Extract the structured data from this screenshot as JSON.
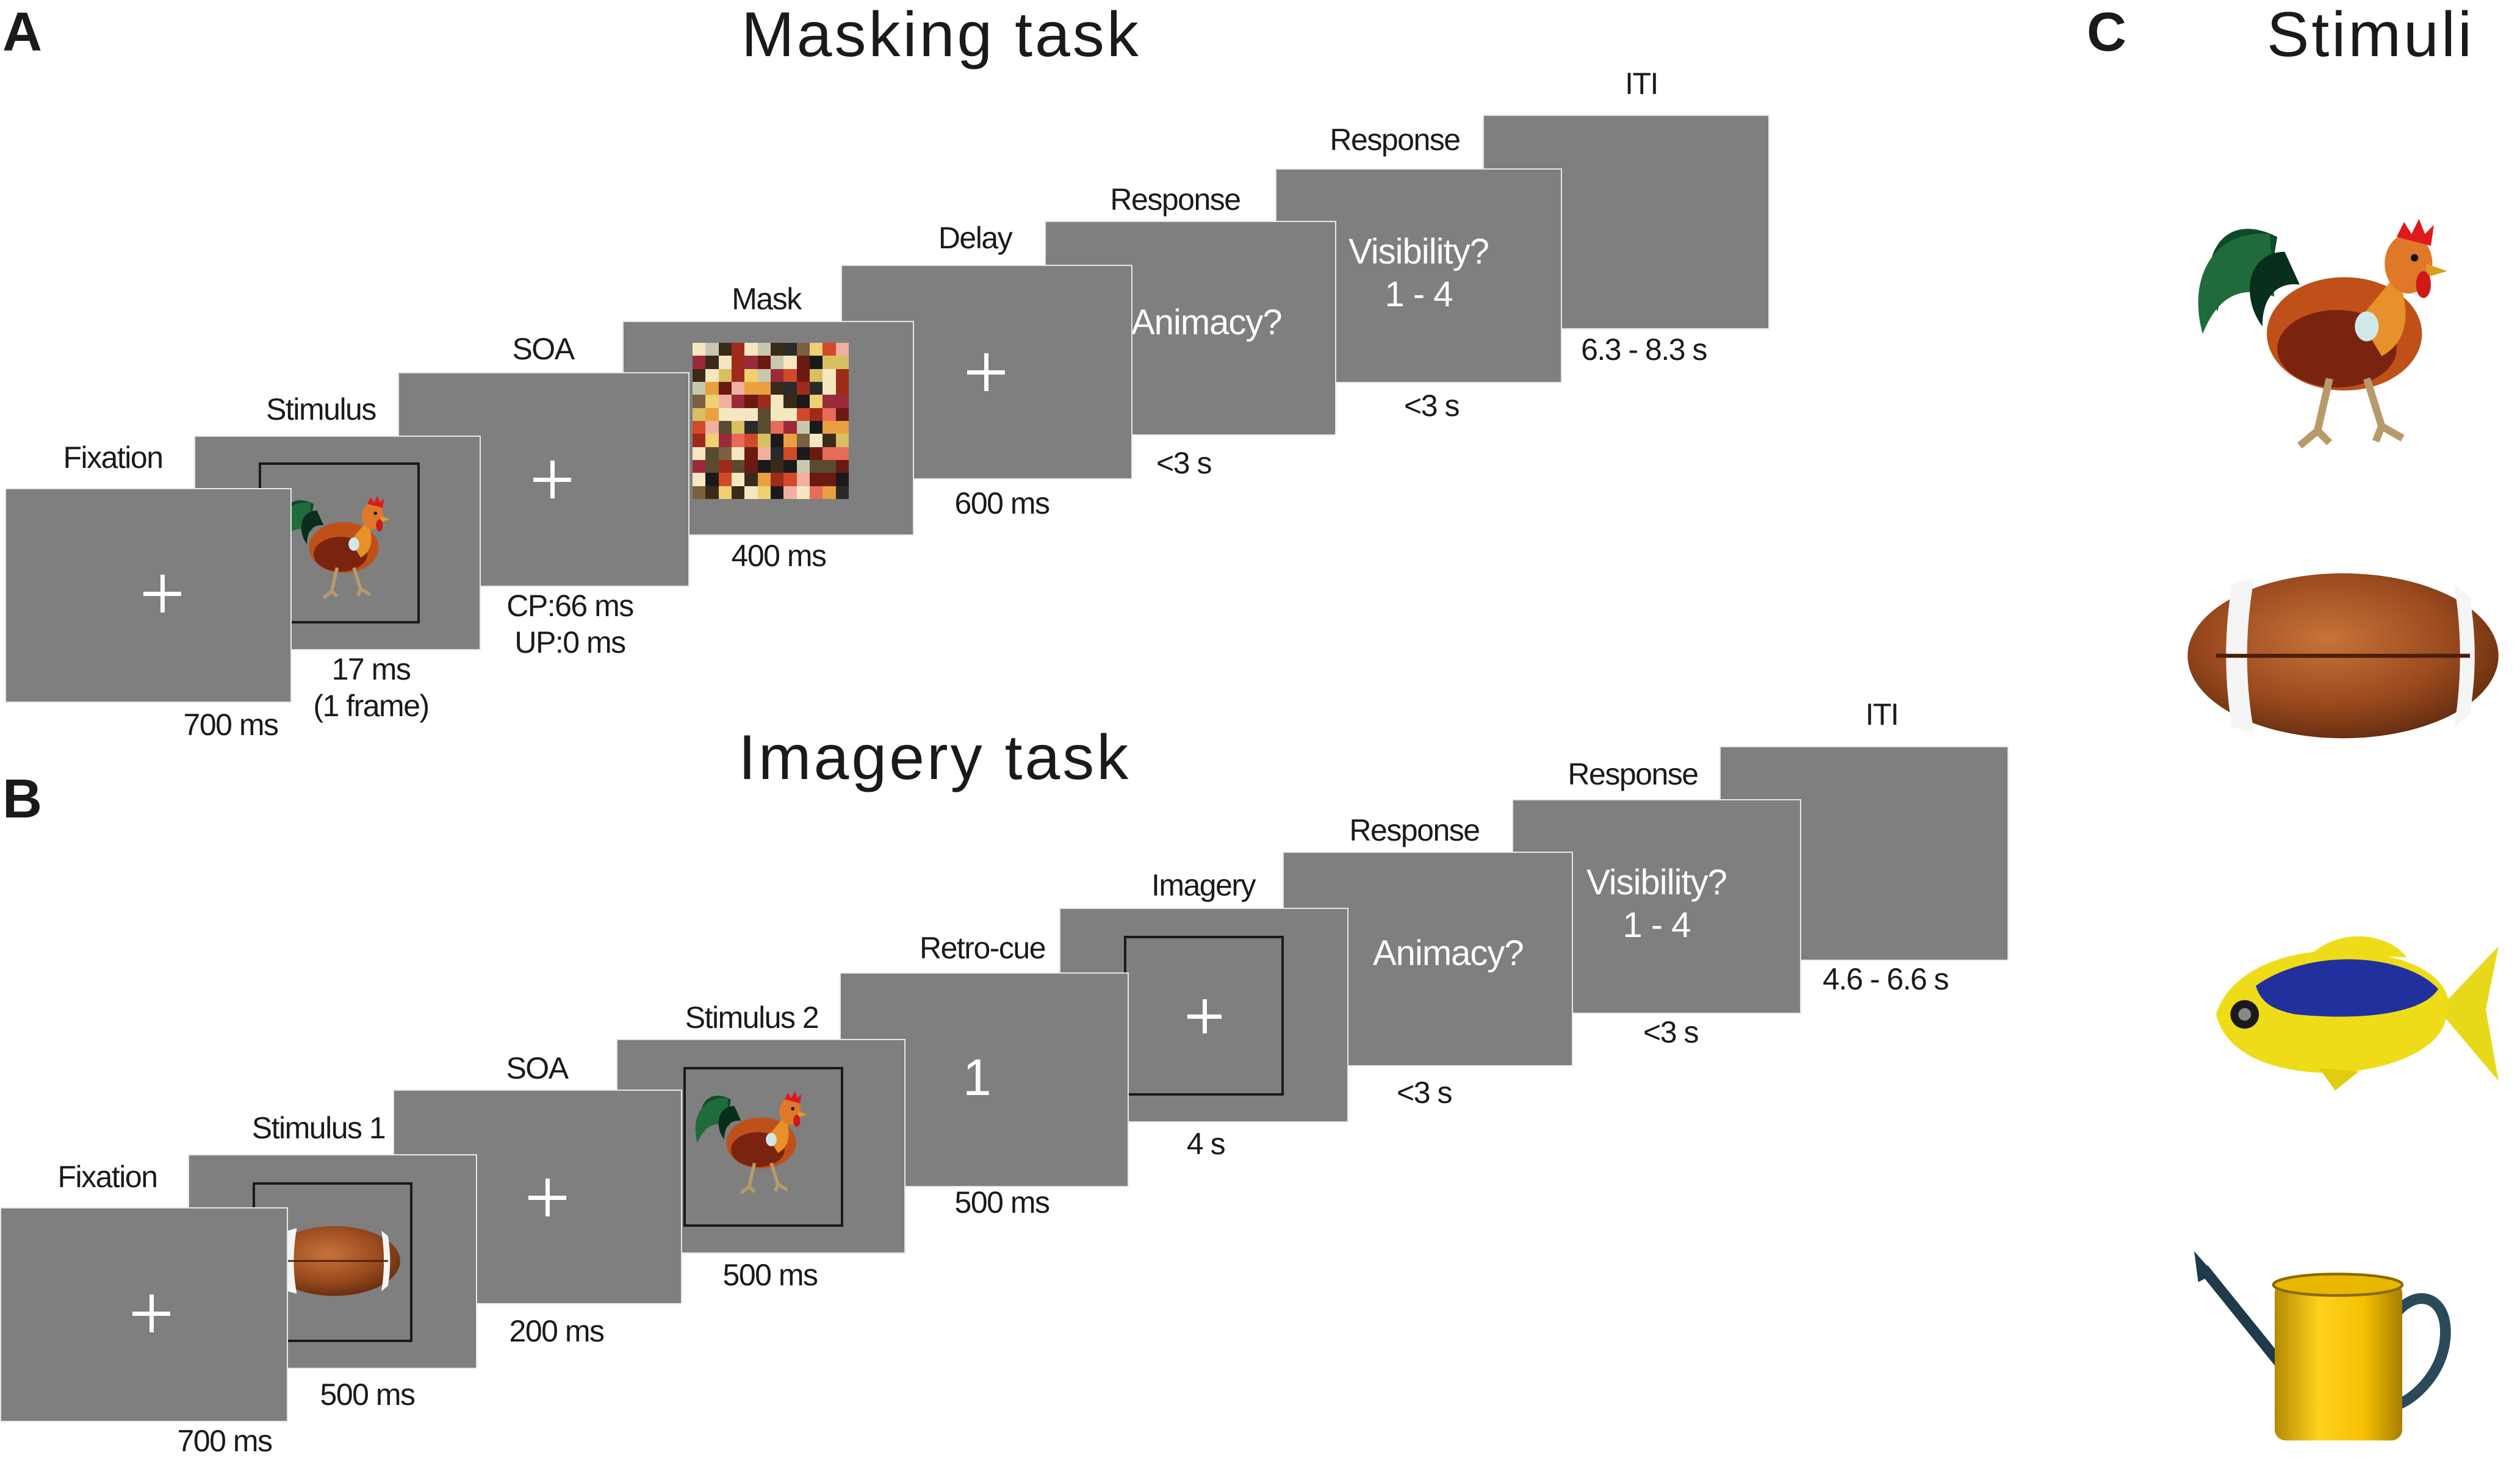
{
  "panel_letters": {
    "a": "A",
    "b": "B",
    "c": "C"
  },
  "titles": {
    "masking": "Masking task",
    "imagery": "Imagery task",
    "stimuli": "Stimuli"
  },
  "masking": {
    "labels": {
      "fixation": "Fixation",
      "stimulus": "Stimulus",
      "soa": "SOA",
      "mask": "Mask",
      "delay": "Delay",
      "response1": "Response",
      "response2": "Response",
      "iti": "ITI"
    },
    "texts": {
      "animacy": "Animacy?",
      "visibility_line1": "Visibility?",
      "visibility_line2": "1 - 4"
    },
    "timings": {
      "fixation": "700 ms",
      "stimulus_1": "17 ms",
      "stimulus_2": "(1 frame)",
      "soa_1": "CP:66 ms",
      "soa_2": "UP:0 ms",
      "mask": "400 ms",
      "delay": "600 ms",
      "response1": "<3 s",
      "response2": "<3 s",
      "iti": "6.3 - 8.3 s"
    }
  },
  "imagery": {
    "labels": {
      "fixation": "Fixation",
      "stimulus1": "Stimulus 1",
      "soa": "SOA",
      "stimulus2": "Stimulus 2",
      "retrocue": "Retro-cue",
      "imagery": "Imagery",
      "response1": "Response",
      "response2": "Response",
      "iti": "ITI"
    },
    "texts": {
      "cue": "1",
      "animacy": "Animacy?",
      "visibility_line1": "Visibility?",
      "visibility_line2": "1 - 4"
    },
    "timings": {
      "fixation": "700 ms",
      "stimulus1": "500 ms",
      "soa": "200 ms",
      "stimulus2": "500 ms",
      "retrocue": "500 ms",
      "imagery": "4 s",
      "response1": "<3 s",
      "response2": "<3 s",
      "iti": "4.6 - 6.6 s"
    }
  },
  "stimuli": [
    "rooster",
    "american-football",
    "tropical-fish",
    "watering-can"
  ],
  "colors": {
    "screen": "#7f7f7f",
    "screen_text": "#ffffff",
    "frame": "#1a1a1a"
  }
}
